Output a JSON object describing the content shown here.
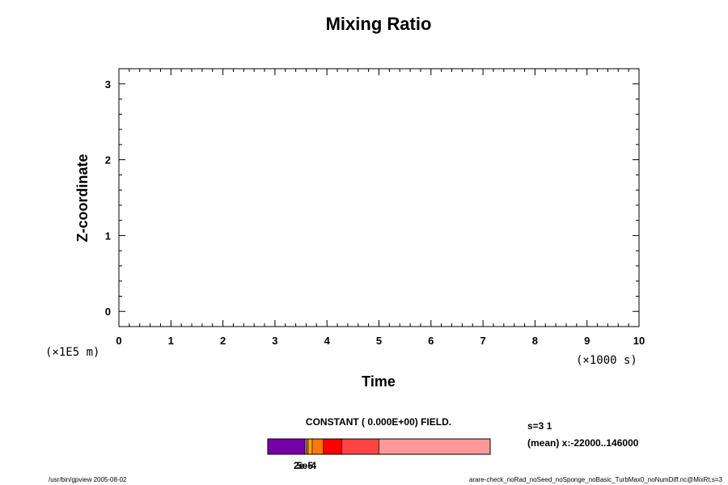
{
  "chart_data": {
    "type": "heatmap",
    "title": "Mixing Ratio",
    "xlabel": "Time",
    "ylabel": "Z-coordinate",
    "x_unit": "(×1000 s)",
    "y_unit": "(×1E5 m)",
    "xlim": [
      0,
      10
    ],
    "ylim": [
      -0.2,
      3.2
    ],
    "x_ticks": [
      "0",
      "1",
      "2",
      "3",
      "4",
      "5",
      "6",
      "7",
      "8",
      "9",
      "10"
    ],
    "y_ticks": [
      "0",
      "1",
      "2",
      "3"
    ],
    "field_label": "CONSTANT ( 0.000E+00) FIELD.",
    "values": []
  },
  "colorbar": {
    "colors": [
      "#7700aa",
      "#cc66cc",
      "#ddaa00",
      "#ffaa00",
      "#ff7700",
      "#ff0000",
      "#ff4444",
      "#ff9999"
    ],
    "tick_labels": [
      "2e-5",
      "5e-4"
    ]
  },
  "side_info": {
    "line1": "s=3 1",
    "line2": "(mean) x:-22000..146000"
  },
  "footer": {
    "left": "/usr/bin/gpview 2005-08-02",
    "right": "arare-check_noRad_noSeed_noSponge_noBasic_TurbMax0_noNumDiff.nc@MixRt,s=3"
  }
}
